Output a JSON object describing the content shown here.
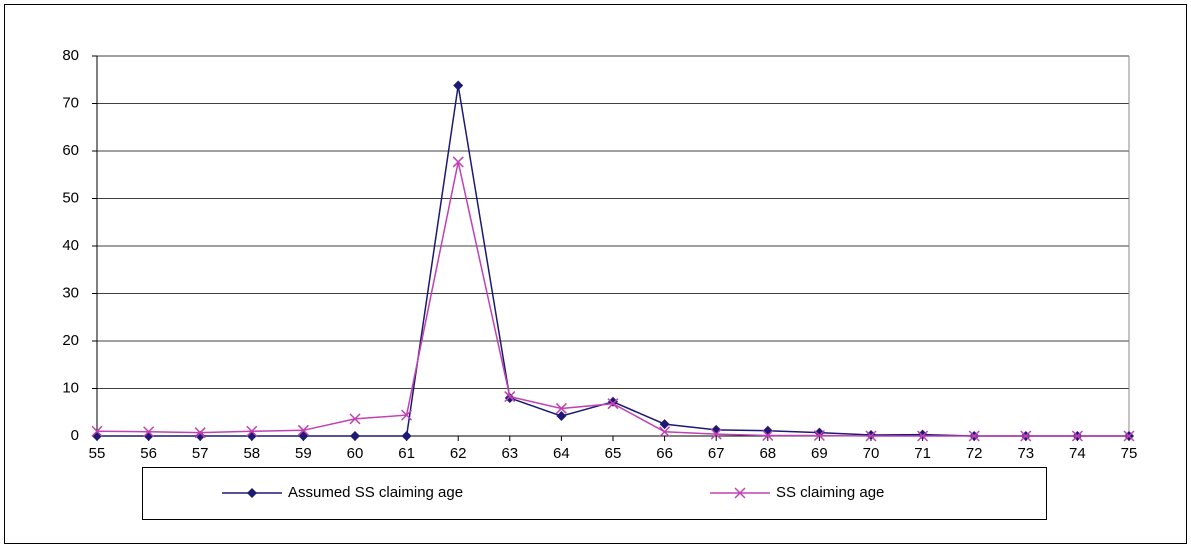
{
  "chart_data": {
    "type": "line",
    "x": [
      55,
      56,
      57,
      58,
      59,
      60,
      61,
      62,
      63,
      64,
      65,
      66,
      67,
      68,
      69,
      70,
      71,
      72,
      73,
      74,
      75
    ],
    "xlim": [
      55,
      75
    ],
    "xticks": [
      55,
      56,
      57,
      58,
      59,
      60,
      61,
      62,
      63,
      64,
      65,
      66,
      67,
      68,
      69,
      70,
      71,
      72,
      73,
      74,
      75
    ],
    "ylim": [
      0,
      80
    ],
    "yticks": [
      0,
      10,
      20,
      30,
      40,
      50,
      60,
      70,
      80
    ],
    "grid": true,
    "legend": "bottom",
    "series": [
      {
        "name": "Assumed SS claiming age",
        "color": "#1c1a72",
        "marker": "diamond",
        "values": [
          0,
          0,
          0,
          0,
          0,
          0,
          0,
          73.8,
          8,
          4.2,
          7.2,
          2.5,
          1.3,
          1.1,
          0.7,
          0.2,
          0.3,
          0,
          0,
          0,
          0
        ]
      },
      {
        "name": "SS claiming age",
        "color": "#c041b4",
        "marker": "x",
        "values": [
          1.0,
          0.9,
          0.7,
          1.0,
          1.2,
          3.6,
          4.4,
          57.7,
          8.3,
          5.8,
          6.8,
          0.9,
          0.4,
          0.1,
          0.1,
          0,
          0,
          0,
          0,
          0,
          0
        ]
      }
    ]
  }
}
